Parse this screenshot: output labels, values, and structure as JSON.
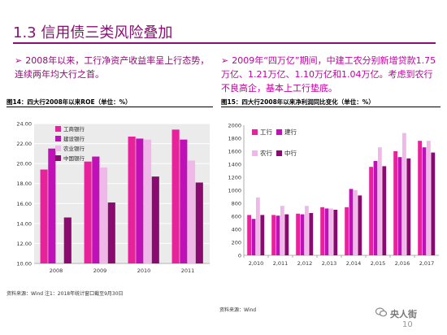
{
  "page": {
    "title": "1.3 信用债三类风险叠加",
    "bullet_left": "2008年以来，工行净资产收益率呈上行态势，连续两年均大行之首。",
    "bullet_right": "2009年“四万亿”期间，中建工农分别新增贷款1.75万亿、1.21万亿、1.10万亿和1.04万亿。考虑到农行不良高企，基本上工行垫底。",
    "page_number": "10",
    "watermark": "央人街",
    "source_left": "资料来源：Wind  注1：2018年统计窗口截至9月30日",
    "source_right": "资料来源：Wind"
  },
  "chart_data": [
    {
      "type": "bar",
      "caption": "图14：四大行2008年以来ROE（单位：%）",
      "categories": [
        "2008",
        "2009",
        "2010",
        "2011"
      ],
      "ylim": [
        10,
        24
      ],
      "yticks": [
        "10.00",
        "12.00",
        "14.00",
        "16.00",
        "18.00",
        "20.00",
        "22.00",
        "24.00"
      ],
      "series": [
        {
          "name": "工商银行",
          "values": [
            19.4,
            20.2,
            22.7,
            23.4
          ],
          "color": "#e8229a"
        },
        {
          "name": "建设银行",
          "values": [
            21.5,
            20.7,
            22.5,
            22.4
          ],
          "color": "#c010b8"
        },
        {
          "name": "农业银行",
          "values": [
            null,
            19.6,
            22.4,
            20.3
          ],
          "color": "#f0b8e8"
        },
        {
          "name": "中国银行",
          "values": [
            14.6,
            16.1,
            18.7,
            18.1
          ],
          "color": "#8a0a70"
        }
      ],
      "grid": true,
      "legend": "top-left"
    },
    {
      "type": "bar",
      "caption": "图15：四大行2008年以来净利润同比变化（单位：%）",
      "categories": [
        "2,010",
        "2,011",
        "2,012",
        "2,013",
        "2,014",
        "2,015",
        "2,016",
        "2,017"
      ],
      "ylim": [
        0,
        2000
      ],
      "yticks": [
        "0",
        "200",
        "400",
        "600",
        "800",
        "1000",
        "1200",
        "1400",
        "1600",
        "1800",
        "2000"
      ],
      "series": [
        {
          "name": "工行",
          "values": [
            620,
            620,
            640,
            740,
            740,
            1360,
            1600,
            1760
          ],
          "color": "#e8229a"
        },
        {
          "name": "建行",
          "values": [
            560,
            610,
            630,
            720,
            1020,
            1450,
            1510,
            1660
          ],
          "color": "#c010b8"
        },
        {
          "name": "农行",
          "values": [
            890,
            760,
            760,
            720,
            1000,
            1660,
            1880,
            1760
          ],
          "color": "#f0b8e8"
        },
        {
          "name": "中行",
          "values": [
            620,
            630,
            650,
            700,
            920,
            1370,
            1490,
            1580
          ],
          "color": "#8a0a70"
        }
      ],
      "grid": false,
      "legend": "top-left"
    }
  ]
}
